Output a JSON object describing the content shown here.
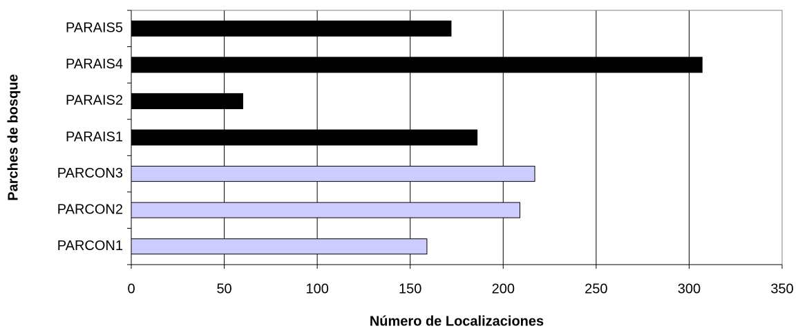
{
  "chart_data": {
    "type": "barh",
    "xlabel": "Número de Localizaciones",
    "ylabel": "Parches de bosque",
    "categories": [
      "PARAIS5",
      "PARAIS4",
      "PARAIS2",
      "PARAIS1",
      "PARCON3",
      "PARCON2",
      "PARCON1"
    ],
    "values": [
      172,
      307,
      60,
      186,
      217,
      209,
      159
    ],
    "colors": [
      "#000000",
      "#000000",
      "#000000",
      "#000000",
      "#ccccff",
      "#ccccff",
      "#ccccff"
    ],
    "xlim": [
      0,
      350
    ],
    "xticks": [
      0,
      50,
      100,
      150,
      200,
      250,
      300,
      350
    ],
    "grid": true
  }
}
